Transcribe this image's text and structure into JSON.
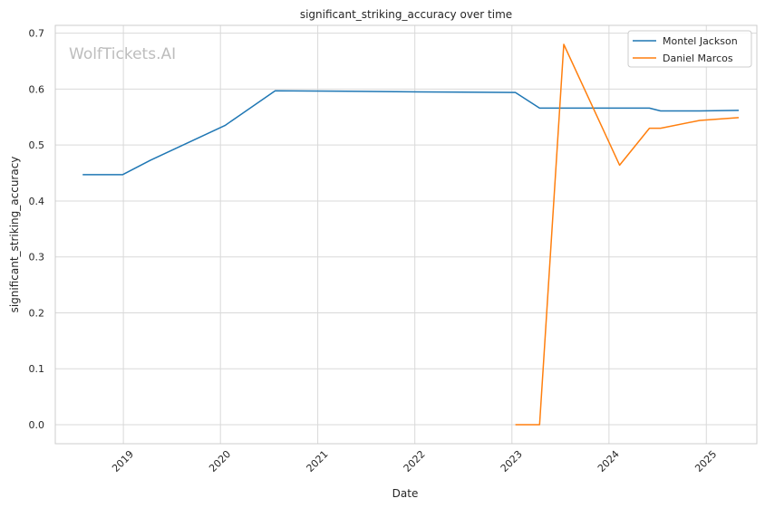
{
  "watermark": "WolfTickets.AI",
  "chart_data": {
    "type": "line",
    "title": "significant_striking_accuracy over time",
    "xlabel": "Date",
    "ylabel": "significant_striking_accuracy",
    "x_ticks": [
      "2019",
      "2020",
      "2021",
      "2022",
      "2023",
      "2024",
      "2025"
    ],
    "y_ticks": [
      "0.0",
      "0.1",
      "0.2",
      "0.3",
      "0.4",
      "0.5",
      "0.6",
      "0.7"
    ],
    "xlim": [
      "2018-04-20",
      "2025-07-10"
    ],
    "ylim": [
      -0.034,
      0.714
    ],
    "grid": true,
    "legend_position": "top-right",
    "series": [
      {
        "name": "Montel Jackson",
        "color": "#1f77b4",
        "points": [
          [
            "2018-08-01",
            0.447
          ],
          [
            "2018-12-29",
            0.447
          ],
          [
            "2019-04-13",
            0.473
          ],
          [
            "2020-01-18",
            0.535
          ],
          [
            "2020-07-25",
            0.597
          ],
          [
            "2021-06-05",
            0.596
          ],
          [
            "2022-01-20",
            0.595
          ],
          [
            "2023-01-14",
            0.594
          ],
          [
            "2023-04-15",
            0.566
          ],
          [
            "2024-06-01",
            0.566
          ],
          [
            "2024-07-13",
            0.561
          ],
          [
            "2024-12-07",
            0.561
          ],
          [
            "2025-05-03",
            0.562
          ]
        ]
      },
      {
        "name": "Daniel Marcos",
        "color": "#ff7f0e",
        "points": [
          [
            "2023-01-14",
            0.0
          ],
          [
            "2023-04-15",
            0.0
          ],
          [
            "2023-07-15",
            0.68
          ],
          [
            "2024-02-10",
            0.464
          ],
          [
            "2024-06-01",
            0.53
          ],
          [
            "2024-07-13",
            0.53
          ],
          [
            "2024-12-07",
            0.544
          ],
          [
            "2025-05-03",
            0.549
          ]
        ]
      }
    ]
  }
}
